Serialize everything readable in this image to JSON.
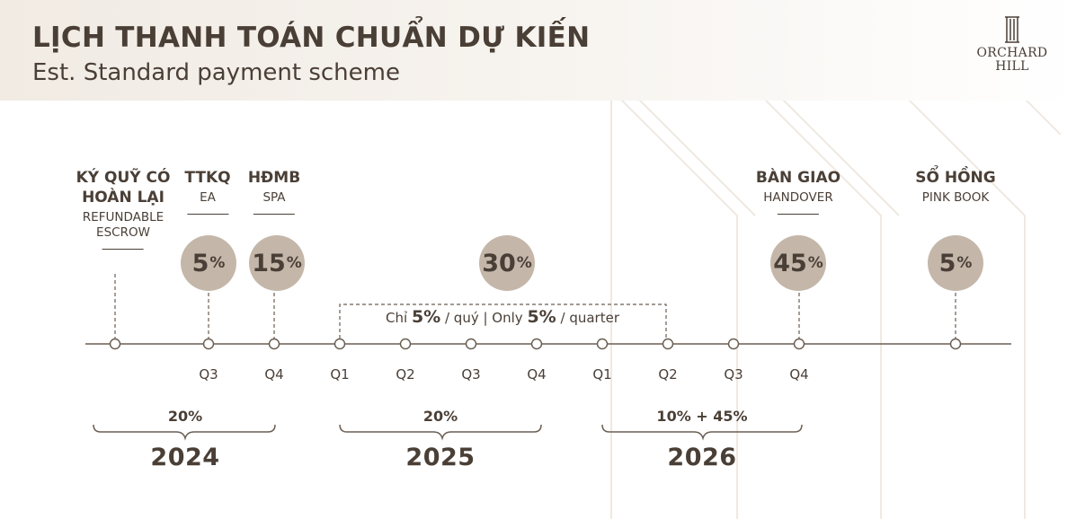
{
  "header": {
    "title": "LỊCH THANH TOÁN CHUẨN DỰ KIẾN",
    "subtitle": "Est. Standard payment scheme"
  },
  "logo": {
    "line1": "ORCHARD",
    "line2": "HILL"
  },
  "milestones": [
    {
      "title1": "KÝ QUỸ CÓ",
      "title2": "HOÀN LẠI",
      "sub1": "REFUNDABLE",
      "sub2": "ESCROW"
    },
    {
      "title": "TTKQ",
      "sub": "EA",
      "percent": "5",
      "unit": "%"
    },
    {
      "title": "HĐMB",
      "sub": "SPA",
      "percent": "15",
      "unit": "%"
    },
    {
      "percent": "30",
      "unit": "%"
    },
    {
      "title": "BÀN GIAO",
      "sub": "HANDOVER",
      "percent": "45",
      "unit": "%"
    },
    {
      "title": "SỔ HỒNG",
      "sub": "PINK BOOK",
      "percent": "5",
      "unit": "%"
    }
  ],
  "installment_note": {
    "pre": "Chỉ",
    "pct1": "5%",
    "mid": "/ quý | Only",
    "pct2": "5%",
    "post": "/ quarter"
  },
  "quarters": [
    "Q3",
    "Q4",
    "Q1",
    "Q2",
    "Q3",
    "Q4",
    "Q1",
    "Q2",
    "Q3",
    "Q4"
  ],
  "years": [
    {
      "year": "2024",
      "share": "20%"
    },
    {
      "year": "2025",
      "share": "20%"
    },
    {
      "year": "2026",
      "share": "10% + 45%"
    }
  ],
  "colors": {
    "text": "#4a3f36",
    "circle": "#c4b7aa",
    "header_band": "#f1ebe4",
    "line": "#6b5e52"
  }
}
